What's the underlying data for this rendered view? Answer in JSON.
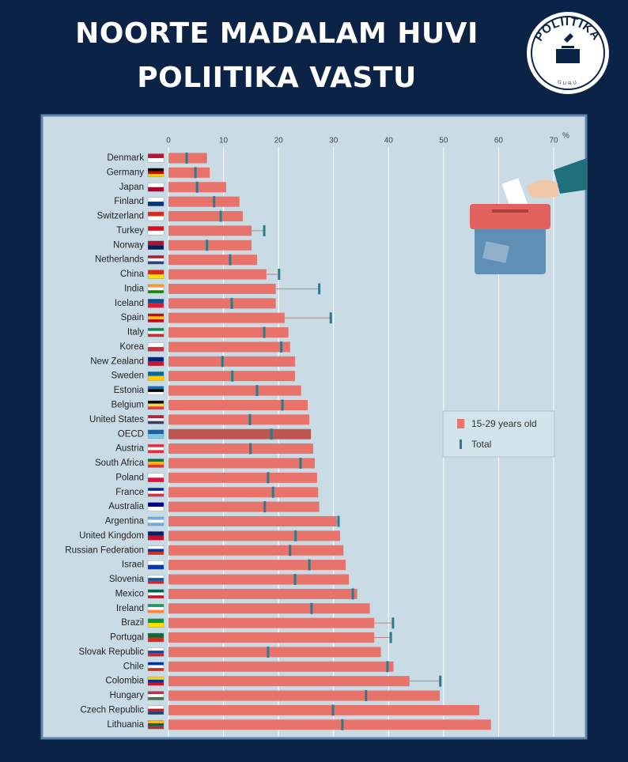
{
  "chart_data": {
    "type": "bar",
    "orientation": "horizontal",
    "title": [
      "NOORTE MADALAM HUVI",
      "POLIITIKA VASTU"
    ],
    "x_unit": "%",
    "categories": [
      "Denmark",
      "Germany",
      "Japan",
      "Finland",
      "Switzerland",
      "Turkey",
      "Norway",
      "Netherlands",
      "China",
      "India",
      "Iceland",
      "Spain",
      "Italy",
      "Korea",
      "New Zealand",
      "Sweden",
      "Estonia",
      "Belgium",
      "United States",
      "OECD",
      "Austria",
      "South Africa",
      "Poland",
      "France",
      "Australia",
      "Argentina",
      "United Kingdom",
      "Russian Federation",
      "Israel",
      "Slovenia",
      "Mexico",
      "Ireland",
      "Brazil",
      "Portugal",
      "Slovak Republic",
      "Chile",
      "Colombia",
      "Hungary",
      "Czech Republic",
      "Lithuania"
    ],
    "series": [
      {
        "name": "15-29 years old",
        "color": "#e8736a",
        "highlight_color": "#c05650",
        "values": [
          7.0,
          7.5,
          10.5,
          12.9,
          13.5,
          15.1,
          15.1,
          16.1,
          17.8,
          19.5,
          19.5,
          21.1,
          21.8,
          22.1,
          23.0,
          23.0,
          24.1,
          25.3,
          25.6,
          25.9,
          26.3,
          26.6,
          27.0,
          27.2,
          27.4,
          30.6,
          31.2,
          31.8,
          32.2,
          32.8,
          34.3,
          36.6,
          37.4,
          37.4,
          38.6,
          40.9,
          43.8,
          49.3,
          56.5,
          58.6
        ]
      },
      {
        "name": "Total",
        "color": "#2b7b8e",
        "values": [
          3.3,
          4.9,
          5.2,
          8.3,
          9.5,
          17.4,
          7.0,
          11.2,
          20.1,
          27.4,
          11.5,
          29.5,
          17.4,
          20.5,
          9.8,
          11.6,
          16.1,
          20.7,
          14.8,
          18.7,
          14.9,
          24.0,
          18.1,
          19.0,
          17.5,
          30.9,
          23.1,
          22.1,
          25.6,
          23.0,
          33.5,
          26.0,
          40.8,
          40.4,
          18.1,
          39.8,
          49.4,
          35.9,
          29.9,
          31.6
        ]
      }
    ],
    "highlight": "OECD",
    "xlim": [
      0,
      70
    ],
    "xticks": [
      0,
      10,
      20,
      30,
      40,
      50,
      60,
      70
    ],
    "grid": true,
    "legend": "right"
  },
  "logo": {
    "text": "POLIITIKA",
    "subtext": "GURU"
  }
}
